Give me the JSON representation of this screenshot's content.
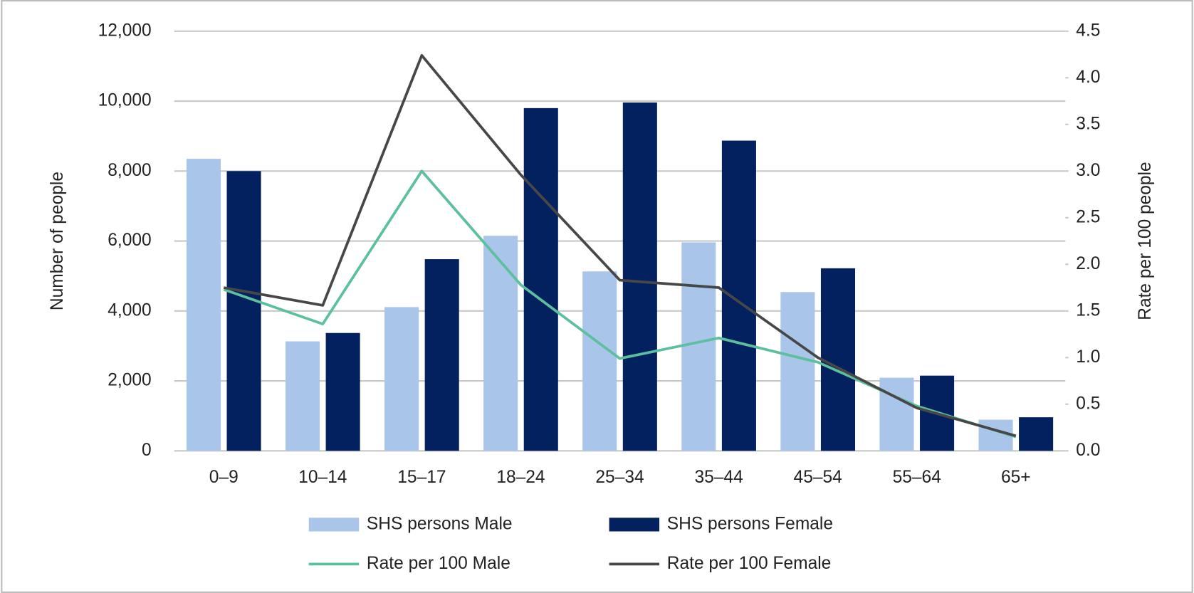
{
  "chart_data": {
    "type": "bar",
    "categories": [
      "0–9",
      "10–14",
      "15–17",
      "18–24",
      "25–34",
      "35–44",
      "45–54",
      "55–64",
      "65+"
    ],
    "series": [
      {
        "name": "SHS persons Male",
        "color": "#a9c5e9",
        "values": [
          8350,
          3130,
          4110,
          6150,
          5130,
          5960,
          4540,
          2090,
          890
        ]
      },
      {
        "name": "SHS persons Female",
        "color": "#03215f",
        "values": [
          8000,
          3370,
          5480,
          9800,
          9960,
          8870,
          5220,
          2150,
          960
        ]
      },
      {
        "name": "Rate per 100 Male",
        "color": "#5cc09e",
        "type": "line",
        "axis": "y2",
        "values": [
          1.73,
          1.36,
          3.0,
          1.78,
          0.99,
          1.21,
          0.95,
          0.48,
          0.15
        ]
      },
      {
        "name": "Rate per 100 Female",
        "color": "#474747",
        "type": "line",
        "axis": "y2",
        "values": [
          1.75,
          1.56,
          4.24,
          2.96,
          1.83,
          1.75,
          1.0,
          0.46,
          0.16
        ]
      }
    ],
    "y_label": "Number of people",
    "y2_label": "Rate per 100 people",
    "ylim": [
      0,
      12000
    ],
    "yticks": [
      0,
      {
        "value": 2000,
        "label": "2,000"
      },
      {
        "value": 4000,
        "label": "4,000"
      },
      {
        "value": 6000,
        "label": "6,000"
      },
      {
        "value": 8000,
        "label": "8,000"
      },
      {
        "value": 10000,
        "label": "10,000"
      },
      {
        "value": 12000,
        "label": "12,000"
      }
    ],
    "y2lim": [
      0,
      4.5
    ],
    "y2ticks": [
      {
        "value": 0,
        "label": "0.0"
      },
      0.5,
      {
        "value": 1,
        "label": "1.0"
      },
      1.5,
      {
        "value": 2,
        "label": "2.0"
      },
      2.5,
      {
        "value": 3,
        "label": "3.0"
      },
      3.5,
      {
        "value": 4,
        "label": "4.0"
      },
      4.5
    ],
    "grid": true,
    "legend": "bottom"
  }
}
